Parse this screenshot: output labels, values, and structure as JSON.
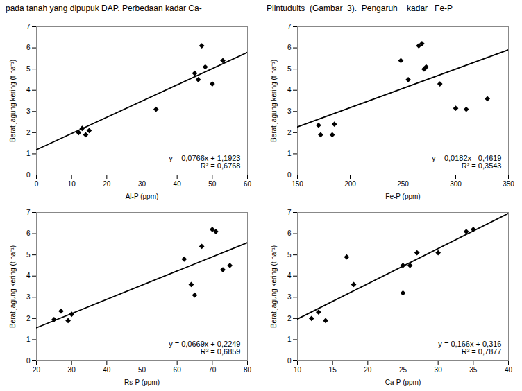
{
  "chart_data": [
    {
      "type": "scatter",
      "xlabel": "Al-P (ppm)",
      "ylabel": "Berat jagung kering (t ha⁻¹)",
      "xlim": [
        0,
        60
      ],
      "ylim": [
        0,
        7
      ],
      "xticks": [
        0,
        10,
        20,
        30,
        40,
        50,
        60
      ],
      "yticks": [
        0,
        1,
        2,
        3,
        4,
        5,
        6,
        7
      ],
      "grid": false,
      "series": [
        {
          "type": "scatter",
          "marker": "diamond",
          "color": "#000000",
          "x": [
            12,
            13,
            14,
            15,
            34,
            45,
            46,
            47,
            48,
            50,
            53
          ],
          "values": [
            2.0,
            2.2,
            1.9,
            2.1,
            3.1,
            4.8,
            4.5,
            6.1,
            5.1,
            4.3,
            5.4
          ]
        },
        {
          "type": "line",
          "line_style": "solid",
          "color": "#000000",
          "x": [
            0,
            60
          ],
          "values": [
            1.1923,
            5.7883
          ]
        }
      ],
      "annotations": [
        "y = 0,0766x + 1,1923",
        "R² = 0,6768"
      ]
    },
    {
      "type": "scatter",
      "xlabel": "Fe-P (ppm)",
      "ylabel": "Berat jagung kering (t ha⁻¹)",
      "xlim": [
        150,
        350
      ],
      "ylim": [
        0,
        7
      ],
      "xticks": [
        150,
        200,
        250,
        300,
        350
      ],
      "yticks": [
        0,
        1,
        2,
        3,
        4,
        5,
        6,
        7
      ],
      "grid": false,
      "series": [
        {
          "type": "scatter",
          "marker": "diamond",
          "color": "#000000",
          "x": [
            170,
            172,
            183,
            185,
            248,
            255,
            265,
            268,
            270,
            272,
            285,
            300,
            310,
            330
          ],
          "values": [
            2.35,
            1.9,
            1.9,
            2.4,
            5.4,
            4.5,
            6.1,
            6.2,
            5.0,
            5.1,
            4.3,
            3.15,
            3.1,
            3.6
          ]
        },
        {
          "type": "line",
          "line_style": "solid",
          "color": "#000000",
          "x": [
            150,
            350
          ],
          "values": [
            2.2681,
            5.9081
          ]
        }
      ],
      "annotations": [
        "y = 0,0182x - 0,4619",
        "R² = 0,3543"
      ]
    },
    {
      "type": "scatter",
      "xlabel": "Rs-P (ppm)",
      "ylabel": "Berat jagung kering (t ha⁻¹)",
      "xlim": [
        20,
        80
      ],
      "ylim": [
        0,
        7
      ],
      "xticks": [
        20,
        30,
        40,
        50,
        60,
        70,
        80
      ],
      "yticks": [
        0,
        1,
        2,
        3,
        4,
        5,
        6,
        7
      ],
      "grid": false,
      "series": [
        {
          "type": "scatter",
          "marker": "diamond",
          "color": "#000000",
          "x": [
            25,
            27,
            29,
            30,
            62,
            64,
            65,
            67,
            70,
            71,
            73,
            75
          ],
          "values": [
            1.95,
            2.35,
            1.9,
            2.2,
            4.8,
            3.6,
            3.1,
            5.4,
            6.2,
            6.1,
            4.3,
            4.5
          ]
        },
        {
          "type": "line",
          "line_style": "solid",
          "color": "#000000",
          "x": [
            20,
            80
          ],
          "values": [
            1.5629,
            5.5769
          ]
        }
      ],
      "annotations": [
        "y = 0,0669x + 0,2249",
        "R² = 0,6859"
      ]
    },
    {
      "type": "scatter",
      "xlabel": "Ca-P (ppm)",
      "ylabel": "Berat jagung kering (t ha⁻¹)",
      "xlim": [
        10,
        40
      ],
      "ylim": [
        0,
        7
      ],
      "xticks": [
        10,
        15,
        20,
        25,
        30,
        35,
        40
      ],
      "yticks": [
        0,
        1,
        2,
        3,
        4,
        5,
        6,
        7
      ],
      "grid": false,
      "series": [
        {
          "type": "scatter",
          "marker": "diamond",
          "color": "#000000",
          "x": [
            12,
            13,
            14,
            17,
            18,
            25,
            26,
            27,
            25,
            30,
            34,
            35
          ],
          "values": [
            2.0,
            2.3,
            1.9,
            4.9,
            3.6,
            3.2,
            4.5,
            5.1,
            4.5,
            5.1,
            6.1,
            6.2
          ]
        },
        {
          "type": "line",
          "line_style": "solid",
          "color": "#000000",
          "x": [
            10,
            40
          ],
          "values": [
            1.976,
            6.956
          ]
        }
      ],
      "annotations": [
        "y = 0,166x + 0,316",
        "R² = 0,7877"
      ]
    }
  ],
  "annotations": [
    "pada tanah yang dipupuk DAP. Perbedaan kadar Ca-",
    "Plintudults  (Gambar  3).  Pengaruh    kadar   Fe-P"
  ]
}
